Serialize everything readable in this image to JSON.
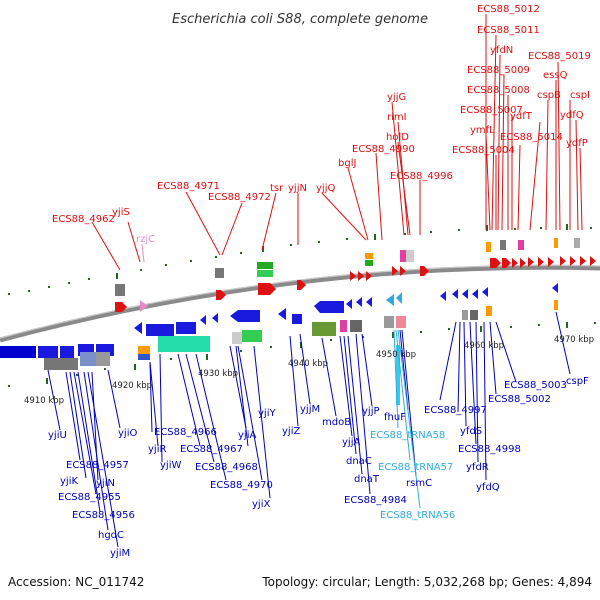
{
  "title": "Escherichia coli S88, complete genome",
  "footer": {
    "accession": "Accession: NC_011742",
    "summary": "Topology: circular; Length: 5,032,268 bp; Genes: 4,894"
  },
  "ticks": [
    "4910 kbp",
    "4920 kbp",
    "4930 kbp",
    "4940 kbp",
    "4950 kbp",
    "4960 kbp",
    "4970 kbp"
  ],
  "forward_labels": [
    "ECS88_4962",
    "yjiS",
    "rzjC",
    "ECS88_4971",
    "ECS88_4972",
    "tsr",
    "yjjN",
    "yjjQ",
    "bglJ",
    "ECS88_4990",
    "yjjG",
    "rimI",
    "holD",
    "ECS88_4996",
    "ECS88_5012",
    "ECS88_5011",
    "yfdN",
    "ECS88_5009",
    "ECS88_5008",
    "ECS88_5007",
    "ymfL",
    "ECS88_5004",
    "ECS88_5014",
    "ydfT",
    "cspB",
    "essQ",
    "ECS88_5019",
    "cspI",
    "ydfQ",
    "ydfP"
  ],
  "reverse_labels": [
    "yjiU",
    "ECS88_4957",
    "yjiK",
    "ECS88_4955",
    "ECS88_4956",
    "hgdC",
    "yjiM",
    "yjiN",
    "yjiO",
    "ECS88_4966",
    "yjiR",
    "yjiW",
    "ECS88_4967",
    "ECS88_4968",
    "yjiY",
    "yjiA",
    "ECS88_4970",
    "yjiX",
    "yjjM",
    "yjiZ",
    "mdoB",
    "yjjA",
    "dnaC",
    "dnaT",
    "ECS88_4984",
    "yjjP",
    "fhuF",
    "ECS88_tRNA58",
    "ECS88_tRNA57",
    "rsmC",
    "ECS88_tRNA56",
    "ECS88_4997",
    "ECS88_5002",
    "ECS88_5003",
    "yfdS",
    "ECS88_4998",
    "yfdR",
    "yfdQ",
    "cspF"
  ],
  "colors": {
    "forward": "#dd1111",
    "reverse": "#0000bb",
    "trna": "#33aadd",
    "pseudo": "#e58cc8",
    "backbone": "#888888",
    "tick": "#226622"
  }
}
